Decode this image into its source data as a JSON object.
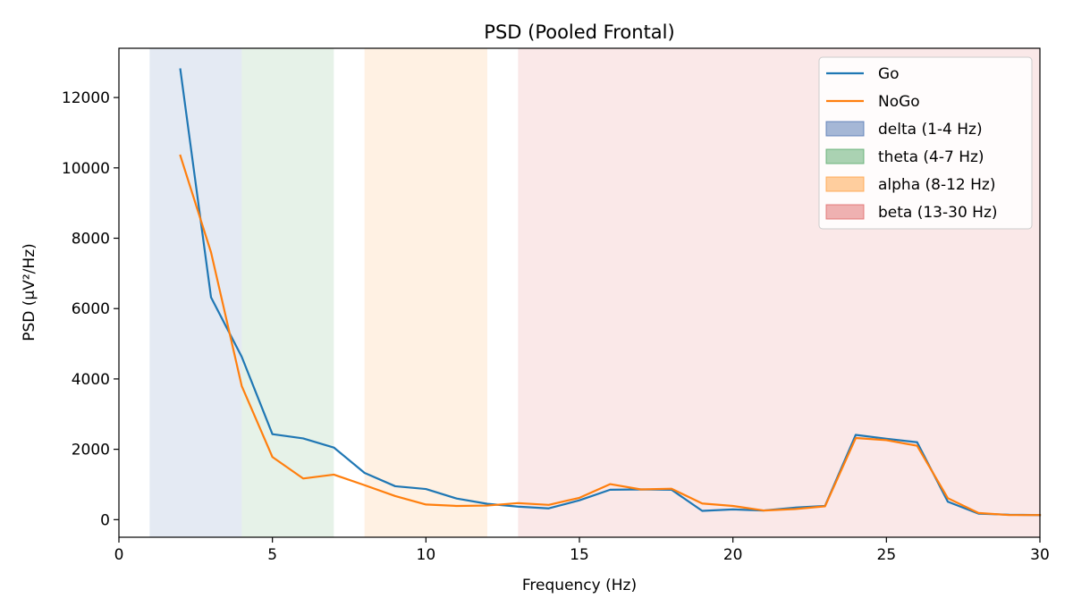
{
  "chart_data": {
    "type": "line",
    "title": "PSD (Pooled Frontal)",
    "xlabel": "Frequency (Hz)",
    "ylabel": "PSD (µV²/Hz)",
    "xlim": [
      0,
      30
    ],
    "ylim": [
      -500,
      13400
    ],
    "xticks": [
      0,
      5,
      10,
      15,
      20,
      25,
      30
    ],
    "yticks": [
      0,
      2000,
      4000,
      6000,
      8000,
      10000,
      12000
    ],
    "grid": false,
    "legend_position": "top-right",
    "x": [
      2,
      3,
      4,
      5,
      6,
      7,
      8,
      9,
      10,
      11,
      12,
      13,
      14,
      15,
      16,
      17,
      18,
      19,
      20,
      21,
      22,
      23,
      24,
      25,
      26,
      27,
      28,
      29,
      30
    ],
    "series": [
      {
        "name": "Go",
        "color": "#1f77b4",
        "values": [
          12800,
          6320,
          4630,
          2430,
          2310,
          2050,
          1330,
          950,
          870,
          600,
          450,
          370,
          320,
          550,
          850,
          860,
          850,
          250,
          290,
          260,
          340,
          390,
          2410,
          2300,
          2200,
          510,
          170,
          140,
          130
        ]
      },
      {
        "name": "NoGo",
        "color": "#ff7f0e",
        "values": [
          10350,
          7600,
          3800,
          1780,
          1170,
          1280,
          980,
          670,
          430,
          390,
          400,
          470,
          420,
          620,
          1010,
          860,
          880,
          460,
          390,
          260,
          300,
          380,
          2320,
          2260,
          2100,
          610,
          190,
          130,
          130
        ]
      }
    ],
    "bands": [
      {
        "name": "delta (1-4 Hz)",
        "range": [
          1,
          4
        ],
        "color": "#4c72b0"
      },
      {
        "name": "theta (4-7 Hz)",
        "range": [
          4,
          7
        ],
        "color": "#55a868"
      },
      {
        "name": "alpha (8-12 Hz)",
        "range": [
          8,
          12
        ],
        "color": "#ff9f40"
      },
      {
        "name": "beta (13-30 Hz)",
        "range": [
          13,
          30
        ],
        "color": "#e06666"
      }
    ]
  }
}
